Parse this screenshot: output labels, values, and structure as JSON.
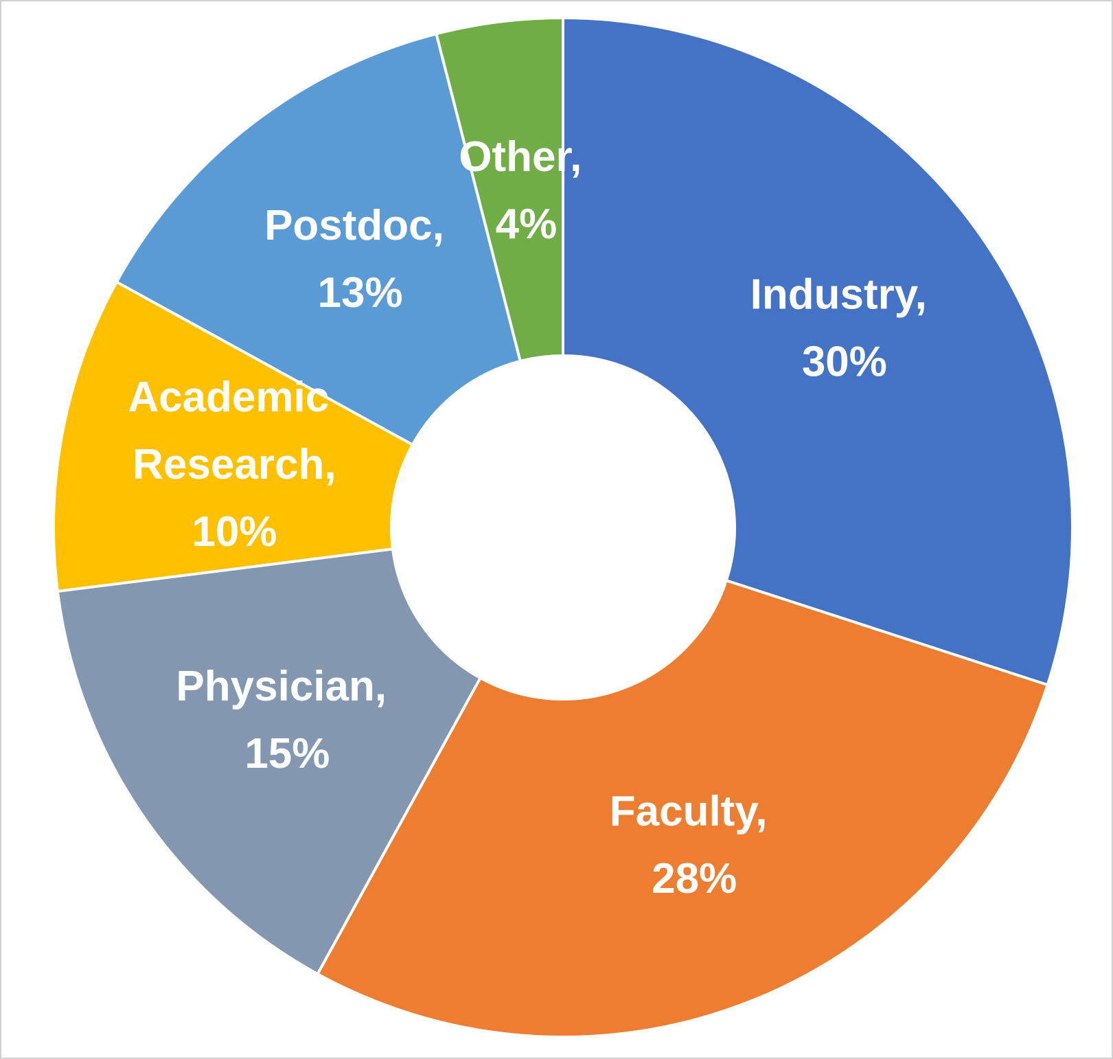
{
  "chart_data": {
    "type": "donut",
    "values": [
      30,
      28,
      15,
      10,
      13,
      4
    ],
    "value_labels": [
      "Industry, 30%",
      "Faculty, 28%",
      "Physician, 15%",
      "Academic Research, 10%",
      "Postdoc, 13%",
      "Other, 4%"
    ],
    "colors": [
      "#4472c4",
      "#ed7d31",
      "#8497b0",
      "#ffc000",
      "#5b9bd5",
      "#70ad47"
    ]
  }
}
